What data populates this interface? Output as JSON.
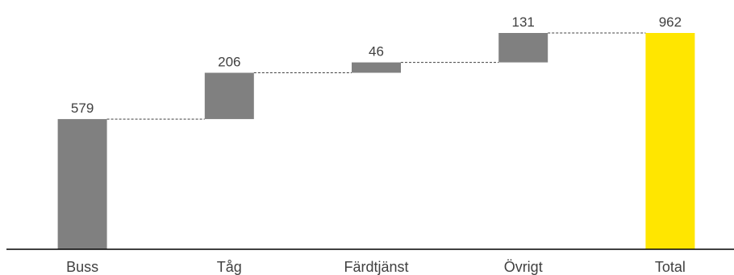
{
  "chart_data": {
    "type": "bar",
    "subtype": "waterfall",
    "title": "",
    "xlabel": "",
    "ylabel": "",
    "categories": [
      "Buss",
      "Tåg",
      "Färdtjänst",
      "Övrigt",
      "Total"
    ],
    "values": [
      579,
      206,
      46,
      131,
      962
    ],
    "is_total": [
      false,
      false,
      false,
      false,
      true
    ],
    "data_labels": [
      "579",
      "206",
      "46",
      "131",
      "962"
    ],
    "ylim": [
      0,
      962
    ],
    "grid": false,
    "legend": "none",
    "connectors": "dashed",
    "colors": {
      "increment": "#808080",
      "total": "#FFE600",
      "axis": "#000000",
      "connector": "#404040",
      "text": "#404040"
    }
  }
}
